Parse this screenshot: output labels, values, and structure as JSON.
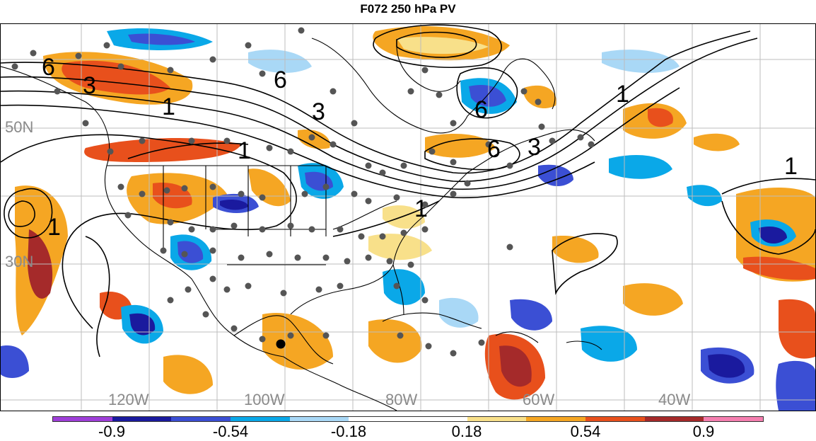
{
  "title": "F072 250 hPa PV",
  "lat_labels": [
    "50N",
    "30N"
  ],
  "lon_labels": [
    "120W",
    "100W",
    "80W",
    "60W",
    "40W"
  ],
  "contour_labels": [
    "6",
    "3",
    "1",
    "6",
    "3",
    "1",
    "6",
    "3",
    "6",
    "1",
    "1",
    "1",
    "1"
  ],
  "colorbar": {
    "colors": [
      "#9f3fd9",
      "#1a1a9e",
      "#3b4fd4",
      "#0aa8e8",
      "#a9d8f6",
      "#ffffff",
      "#ffffff",
      "#f8e08a",
      "#f5a623",
      "#e8501c",
      "#a52a2a",
      "#f57fb0"
    ],
    "tick_labels": [
      "-0.9",
      "-0.54",
      "-0.18",
      "0.18",
      "0.54",
      "0.9"
    ]
  }
}
